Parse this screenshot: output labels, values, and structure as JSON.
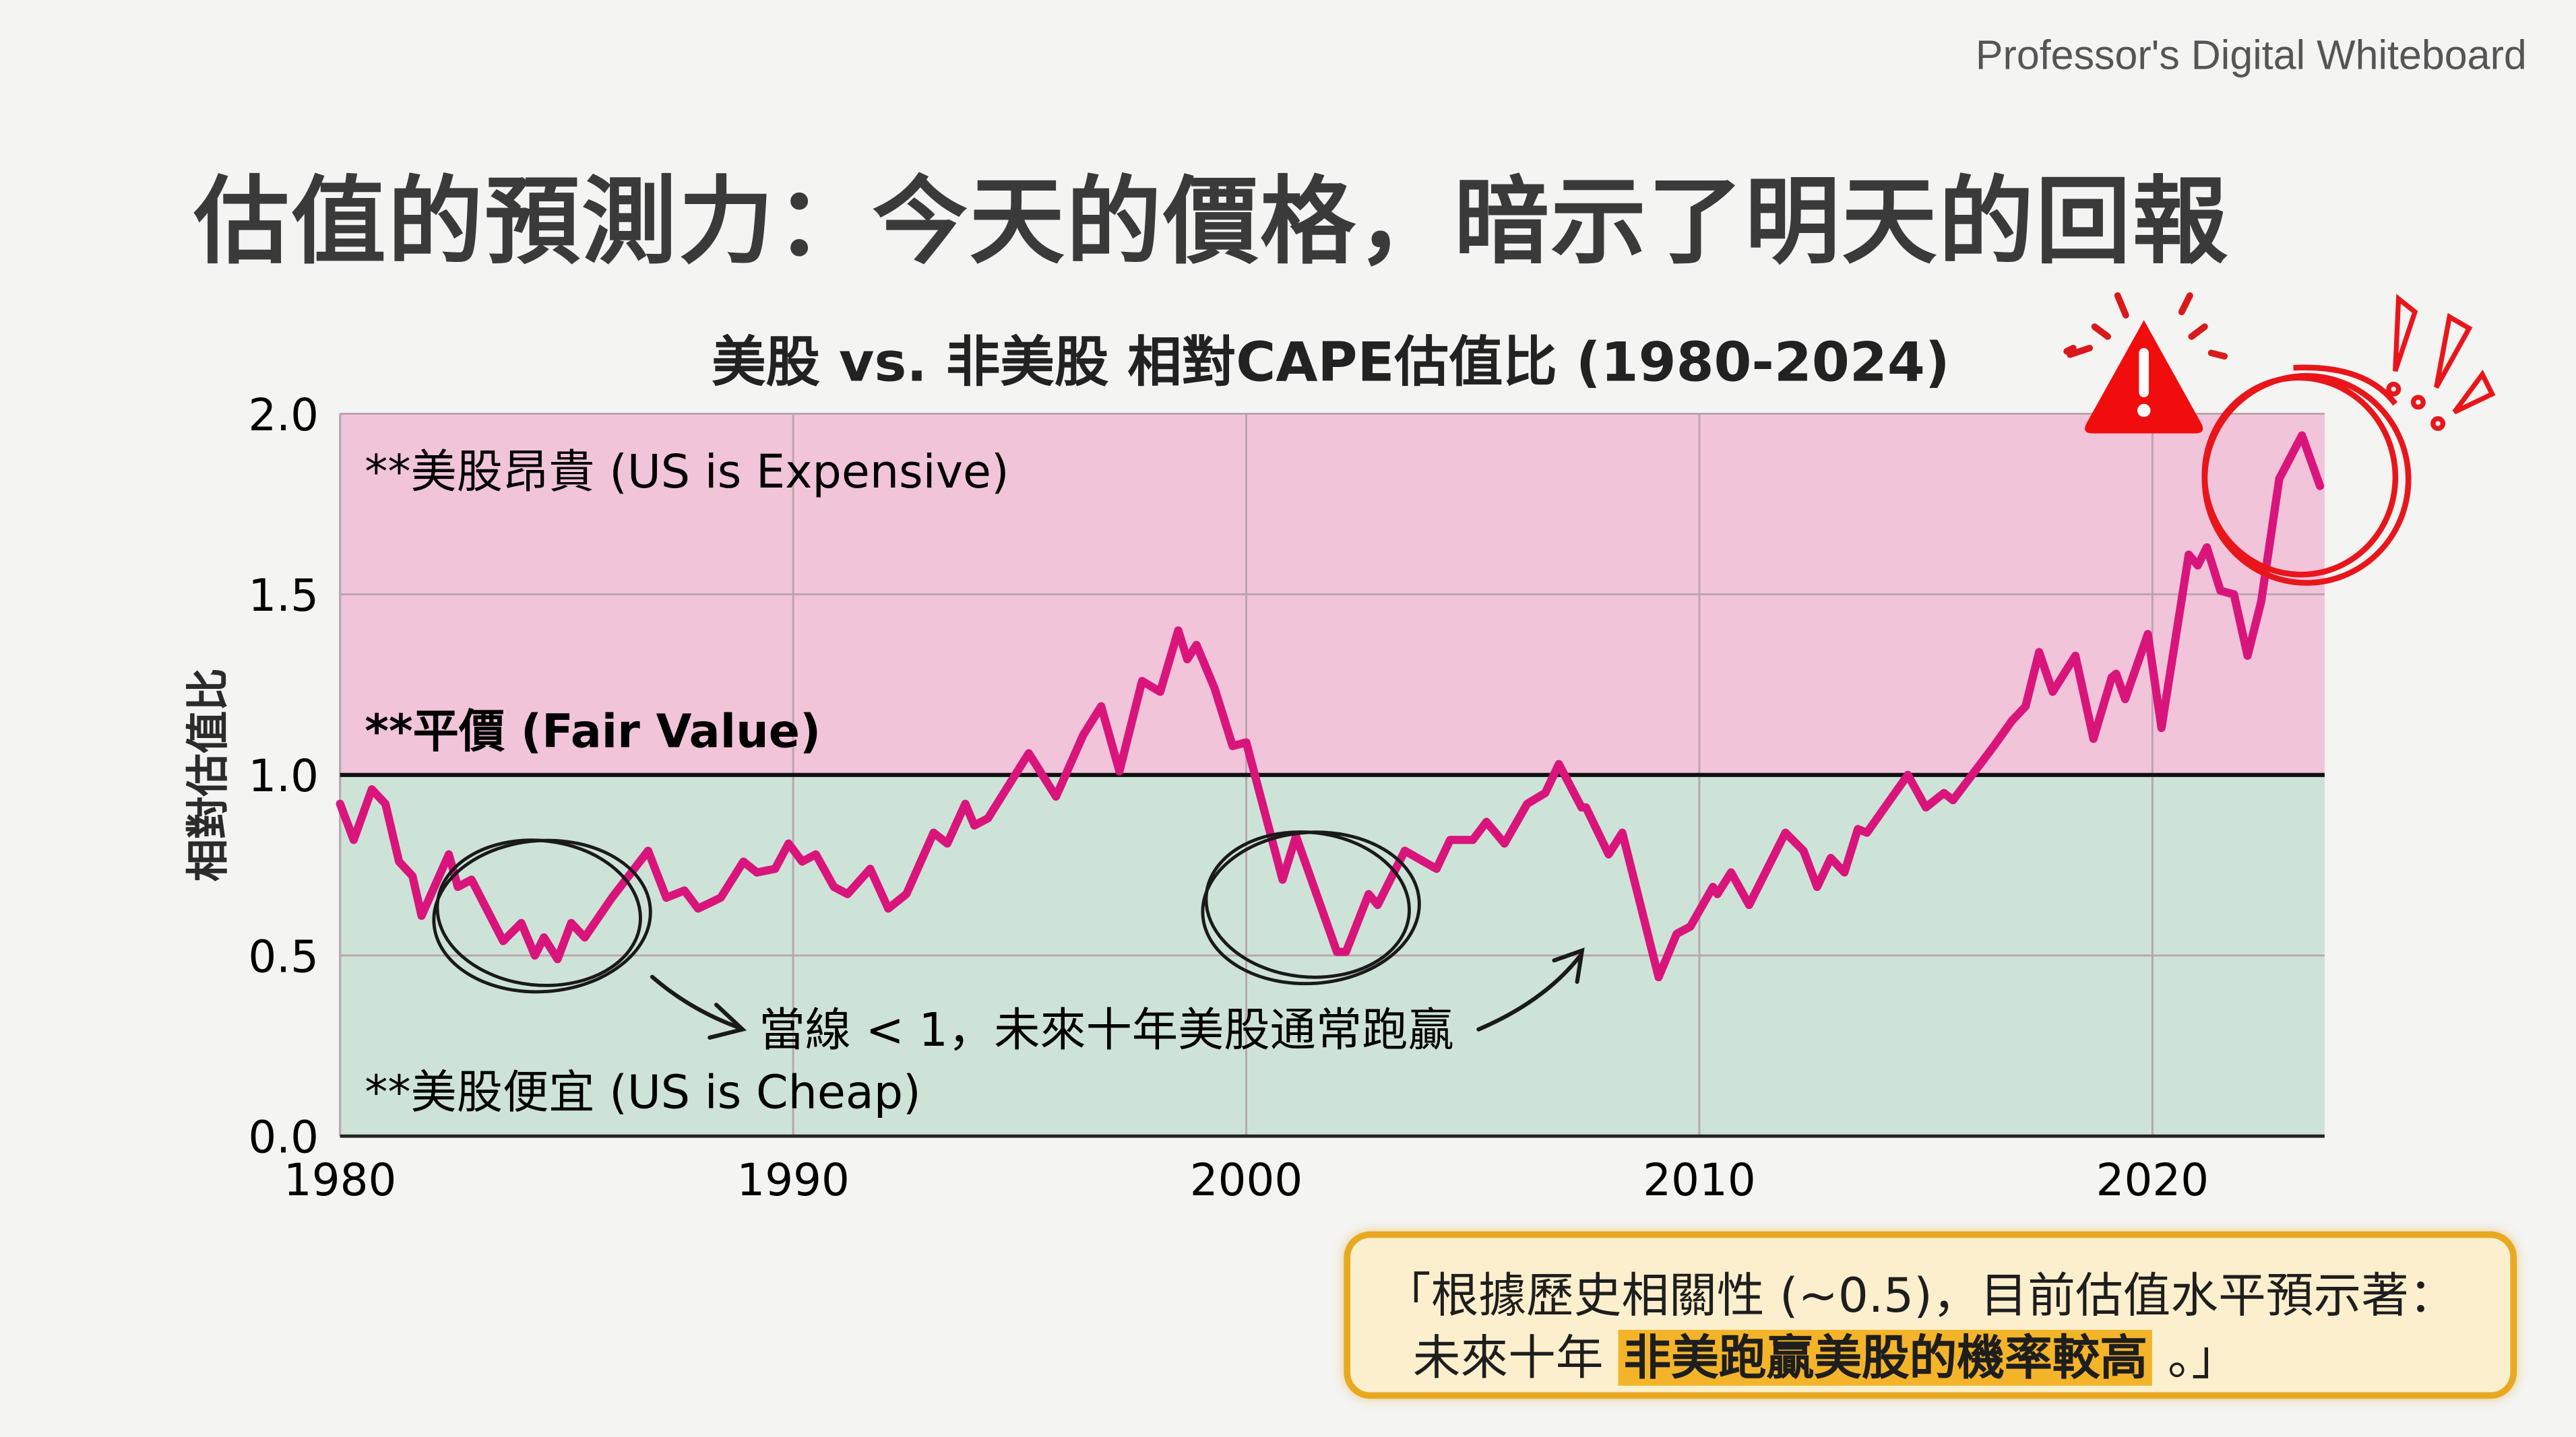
{
  "watermark": "Professor's Digital Whiteboard",
  "title": "估值的預測力：今天的價格，暗示了明天的回報",
  "annotations": {
    "expensive": "**美股昂貴 (US is Expensive)",
    "fair": "**平價 (Fair Value)",
    "cheap": "**美股便宜 (US is Cheap)",
    "note": "當線 < 1，未來十年美股通常跑贏"
  },
  "quote": {
    "line1": "「根據歷史相關性 (~0.5)，目前估值水平預示著：",
    "line2_pre": "未來十年 ",
    "line2_highlight": "非美跑贏美股的機率較高",
    "line2_post": " 。」"
  },
  "colors": {
    "line": "#d9157c",
    "expensive_zone": "#f1c4da",
    "cheap_zone": "#cde3d7",
    "alert": "#e8161b",
    "quote_border": "#e8a922",
    "highlight": "#f4b42a"
  },
  "icons": [
    "warning-triangle-icon",
    "exclamation-marks-icon"
  ],
  "chart_data": {
    "type": "line",
    "title": "美股 vs. 非美股 相對CAPE估值比 (1980-2024)",
    "xlabel": "",
    "ylabel": "相對估值比",
    "xlim": [
      1980,
      2023.8
    ],
    "ylim": [
      0,
      2.0
    ],
    "xticks": [
      "1980",
      "1990",
      "2000",
      "2010",
      "2020"
    ],
    "yticks": [
      "0.0",
      "0.5",
      "1.0",
      "1.5",
      "2.0"
    ],
    "reference_line": 1.0,
    "grid": true,
    "x": [
      1980.0,
      1980.3,
      1980.7,
      1981.0,
      1981.3,
      1981.6,
      1981.8,
      1982.4,
      1982.6,
      1982.9,
      1983.6,
      1984.0,
      1984.3,
      1984.5,
      1984.8,
      1985.1,
      1985.4,
      1986.0,
      1986.8,
      1987.2,
      1987.6,
      1987.9,
      1988.4,
      1988.9,
      1989.2,
      1989.6,
      1989.9,
      1990.2,
      1990.5,
      1990.9,
      1991.2,
      1991.7,
      1992.1,
      1992.5,
      1993.1,
      1993.4,
      1993.8,
      1994.0,
      1994.3,
      1995.2,
      1995.8,
      1996.4,
      1996.8,
      1997.2,
      1997.7,
      1998.1,
      1998.5,
      1998.7,
      1998.9,
      1999.3,
      1999.7,
      2000.0,
      2000.8,
      2001.1,
      2002.0,
      2002.2,
      2002.7,
      2002.9,
      2003.5,
      2004.2,
      2004.5,
      2005.0,
      2005.3,
      2005.7,
      2006.2,
      2006.6,
      2006.9,
      2007.4,
      2007.5,
      2008.0,
      2008.3,
      2008.6,
      2009.1,
      2009.5,
      2009.8,
      2010.3,
      2010.4,
      2010.7,
      2011.1,
      2011.9,
      2012.3,
      2012.6,
      2012.9,
      2013.2,
      2013.5,
      2013.7,
      2014.6,
      2015.0,
      2015.4,
      2015.6,
      2016.2,
      2016.5,
      2016.9,
      2017.2,
      2017.5,
      2017.8,
      2018.3,
      2018.7,
      2019.1,
      2019.2,
      2019.4,
      2019.9,
      2020.2,
      2020.8,
      2021.0,
      2021.2,
      2021.5,
      2021.8,
      2022.1,
      2022.4,
      2022.8,
      2023.3,
      2023.7
    ],
    "y": [
      0.92,
      0.82,
      0.96,
      0.92,
      0.76,
      0.72,
      0.61,
      0.78,
      0.69,
      0.71,
      0.54,
      0.59,
      0.5,
      0.55,
      0.49,
      0.59,
      0.55,
      0.66,
      0.79,
      0.66,
      0.68,
      0.63,
      0.66,
      0.76,
      0.73,
      0.74,
      0.81,
      0.76,
      0.78,
      0.69,
      0.67,
      0.74,
      0.63,
      0.67,
      0.84,
      0.81,
      0.92,
      0.86,
      0.88,
      1.06,
      0.94,
      1.11,
      1.19,
      1.01,
      1.26,
      1.23,
      1.4,
      1.32,
      1.36,
      1.24,
      1.08,
      1.09,
      0.71,
      0.83,
      0.51,
      0.51,
      0.67,
      0.64,
      0.79,
      0.74,
      0.82,
      0.82,
      0.87,
      0.81,
      0.92,
      0.95,
      1.03,
      0.91,
      0.91,
      0.78,
      0.84,
      0.69,
      0.44,
      0.56,
      0.58,
      0.69,
      0.67,
      0.73,
      0.64,
      0.84,
      0.79,
      0.69,
      0.77,
      0.73,
      0.85,
      0.84,
      1.0,
      0.91,
      0.95,
      0.93,
      1.03,
      1.08,
      1.15,
      1.19,
      1.34,
      1.23,
      1.33,
      1.1,
      1.27,
      1.28,
      1.21,
      1.39,
      1.13,
      1.61,
      1.58,
      1.63,
      1.51,
      1.5,
      1.33,
      1.48,
      1.82,
      1.94,
      1.8
    ]
  }
}
